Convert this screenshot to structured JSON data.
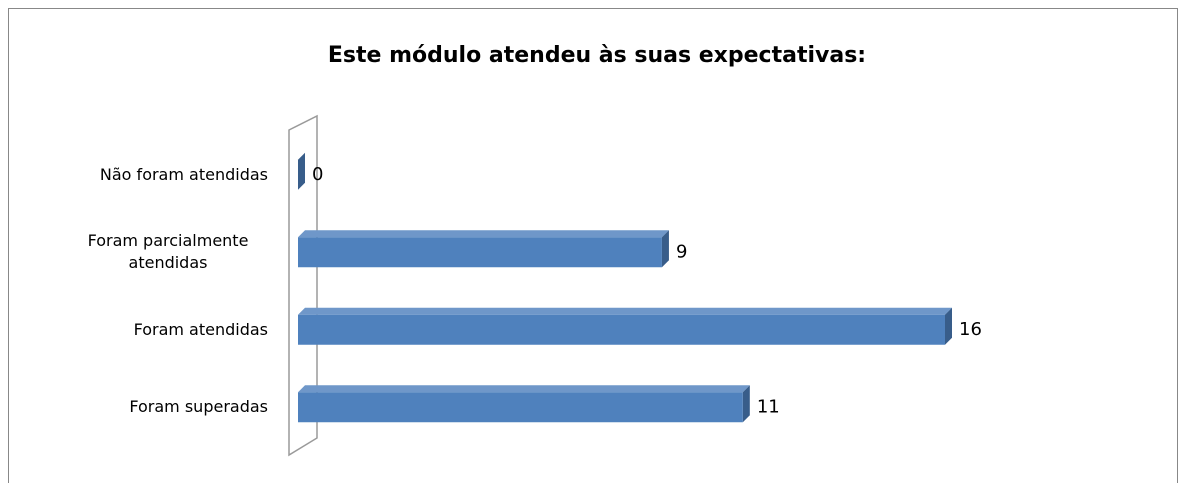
{
  "chart_data": {
    "type": "bar3d_horizontal",
    "title": "Este módulo atendeu às suas expectativas:",
    "categories": [
      "Não foram atendidas",
      "Foram parcialmente atendidas",
      "Foram atendidas",
      "Foram superadas"
    ],
    "values": [
      0,
      9,
      16,
      11
    ],
    "color": "#4f81bd"
  }
}
